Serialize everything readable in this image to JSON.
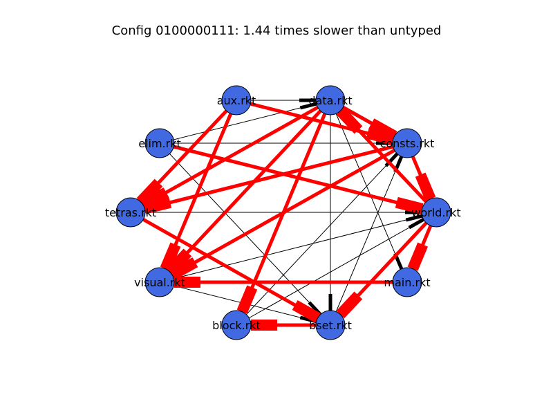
{
  "title": "Config 0100000111: 1.44 times slower than untyped",
  "colors": {
    "typed_edge": "#000000",
    "boundary_edge": "#ff0000",
    "node_fill": "#4169e1",
    "node_stroke": "#000000"
  },
  "nodes": [
    {
      "id": "aux",
      "label": "aux.rkt"
    },
    {
      "id": "data",
      "label": "data.rkt"
    },
    {
      "id": "elim",
      "label": "elim.rkt"
    },
    {
      "id": "consts",
      "label": "consts.rkt"
    },
    {
      "id": "tetras",
      "label": "tetras.rkt"
    },
    {
      "id": "world",
      "label": "world.rkt"
    },
    {
      "id": "visual",
      "label": "visual.rkt"
    },
    {
      "id": "main",
      "label": "main.rkt"
    },
    {
      "id": "block",
      "label": "block.rkt"
    },
    {
      "id": "bset",
      "label": "bset.rkt"
    }
  ],
  "edges": [
    {
      "from": "aux",
      "to": "data",
      "kind": "typed",
      "weight": 1
    },
    {
      "from": "elim",
      "to": "data",
      "kind": "typed",
      "weight": 1
    },
    {
      "from": "elim",
      "to": "consts",
      "kind": "typed",
      "weight": 1
    },
    {
      "from": "elim",
      "to": "bset",
      "kind": "typed",
      "weight": 1
    },
    {
      "from": "data",
      "to": "bset",
      "kind": "typed",
      "weight": 1
    },
    {
      "from": "data",
      "to": "main",
      "kind": "typed",
      "weight": 1
    },
    {
      "from": "consts",
      "to": "data",
      "kind": "typed",
      "weight": 3
    },
    {
      "from": "tetras",
      "to": "world",
      "kind": "typed",
      "weight": 1
    },
    {
      "from": "tetras",
      "to": "bset",
      "kind": "typed",
      "weight": 1
    },
    {
      "from": "visual",
      "to": "world",
      "kind": "typed",
      "weight": 1
    },
    {
      "from": "visual",
      "to": "bset",
      "kind": "typed",
      "weight": 1
    },
    {
      "from": "block",
      "to": "world",
      "kind": "typed",
      "weight": 1
    },
    {
      "from": "block",
      "to": "consts",
      "kind": "typed",
      "weight": 1
    },
    {
      "from": "bset",
      "to": "consts",
      "kind": "typed",
      "weight": 1
    },
    {
      "from": "aux",
      "to": "consts",
      "kind": "boundary",
      "weight": 3
    },
    {
      "from": "data",
      "to": "consts",
      "kind": "boundary",
      "weight": 3
    },
    {
      "from": "aux",
      "to": "tetras",
      "kind": "boundary",
      "weight": 3
    },
    {
      "from": "elim",
      "to": "world",
      "kind": "boundary",
      "weight": 3
    },
    {
      "from": "consts",
      "to": "tetras",
      "kind": "boundary",
      "weight": 3
    },
    {
      "from": "data",
      "to": "tetras",
      "kind": "boundary",
      "weight": 3
    },
    {
      "from": "tetras",
      "to": "bset",
      "kind": "boundary",
      "weight": 3
    },
    {
      "from": "aux",
      "to": "visual",
      "kind": "boundary",
      "weight": 3
    },
    {
      "from": "data",
      "to": "visual",
      "kind": "boundary",
      "weight": 3
    },
    {
      "from": "consts",
      "to": "visual",
      "kind": "boundary",
      "weight": 3
    },
    {
      "from": "data",
      "to": "block",
      "kind": "boundary",
      "weight": 3
    },
    {
      "from": "consts",
      "to": "world",
      "kind": "boundary",
      "weight": 3
    },
    {
      "from": "world",
      "to": "data",
      "kind": "boundary",
      "weight": 3
    },
    {
      "from": "world",
      "to": "bset",
      "kind": "boundary",
      "weight": 3
    },
    {
      "from": "world",
      "to": "main",
      "kind": "boundary",
      "weight": 3
    },
    {
      "from": "main",
      "to": "visual",
      "kind": "boundary",
      "weight": 3
    },
    {
      "from": "bset",
      "to": "block",
      "kind": "boundary",
      "weight": 3
    }
  ]
}
